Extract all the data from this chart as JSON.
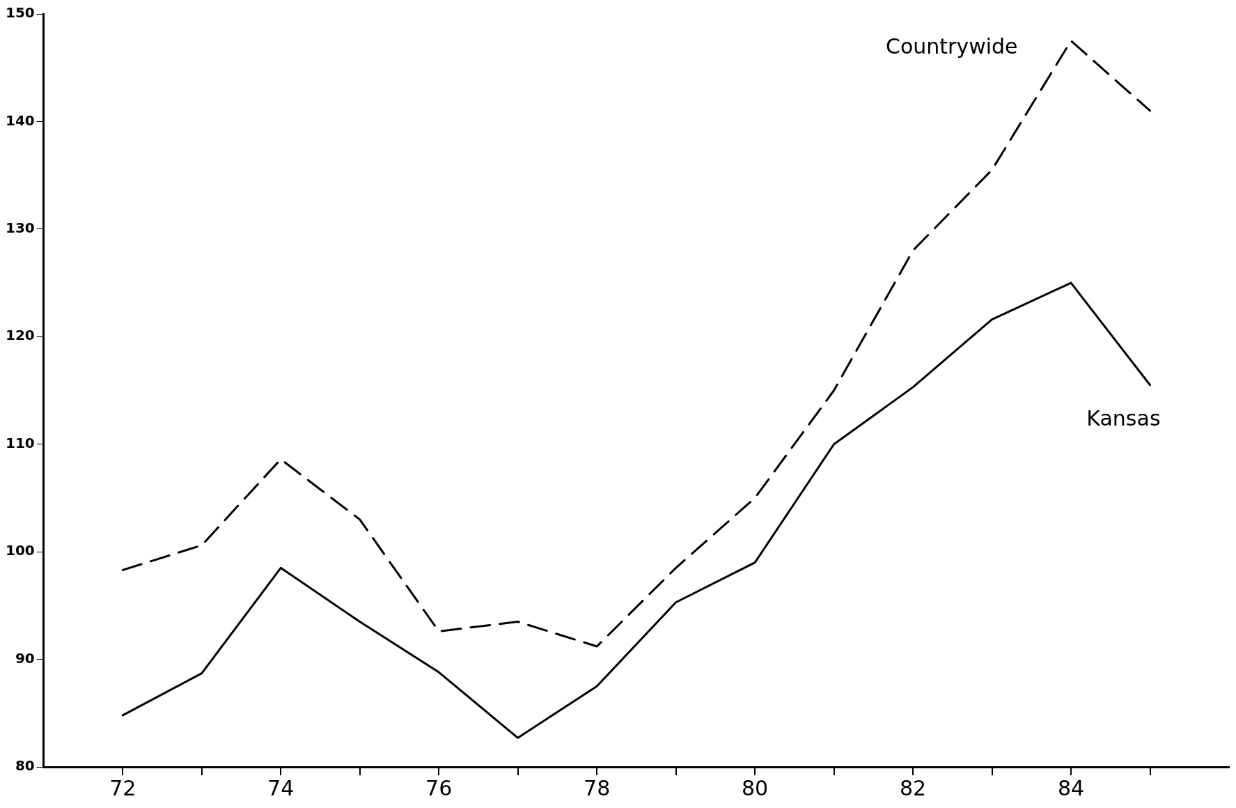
{
  "chart_data": {
    "type": "line",
    "x": [
      72,
      73,
      74,
      75,
      76,
      77,
      78,
      79,
      80,
      81,
      82,
      83,
      84,
      85
    ],
    "series": [
      {
        "name": "Countrywide",
        "color": "#000000",
        "line_style": "dashed",
        "values": [
          98.3,
          100.6,
          108.6,
          103,
          92.6,
          93.5,
          91.2,
          98.5,
          105,
          115,
          128,
          135.5,
          147.5,
          141
        ]
      },
      {
        "name": "Kansas",
        "color": "#000000",
        "line_style": "solid",
        "values": [
          84.8,
          88.7,
          98.5,
          93.5,
          88.8,
          82.7,
          87.5,
          95.3,
          99,
          110,
          115.3,
          121.6,
          125,
          115.5
        ]
      }
    ],
    "xlim": [
      71,
      86
    ],
    "xticks": [
      72,
      {
        "value": 73,
        "label": null
      },
      74,
      {
        "value": 75,
        "label": null
      },
      76,
      {
        "value": 77,
        "label": null
      },
      78,
      {
        "value": 79,
        "label": null
      },
      80,
      {
        "value": 81,
        "label": null
      },
      82,
      {
        "value": 83,
        "label": null
      },
      84,
      {
        "value": 85,
        "label": null
      }
    ],
    "ylim": [
      80,
      150
    ],
    "yticks": [
      80,
      90,
      100,
      110,
      120,
      130,
      140,
      150
    ],
    "grid": false,
    "legend": false,
    "marker": "none"
  }
}
